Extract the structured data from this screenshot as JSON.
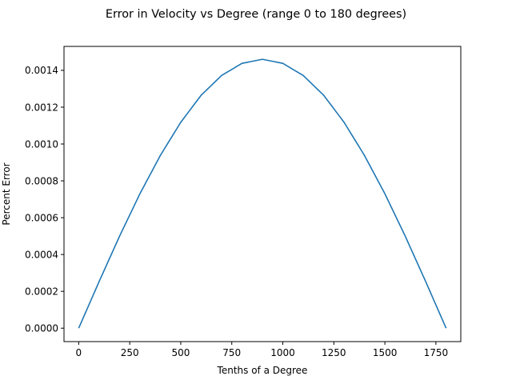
{
  "chart_data": {
    "type": "line",
    "title": "Error in Velocity vs Degree (range 0 to 180 degrees)",
    "xlabel": "Tenths of a Degree",
    "ylabel": "Percent Error",
    "xlim": [
      -72,
      1872
    ],
    "ylim": [
      -7.29e-05,
      0.00153
    ],
    "x_ticks": [
      0,
      250,
      500,
      750,
      1000,
      1250,
      1500,
      1750
    ],
    "x_tick_labels": [
      "0",
      "250",
      "500",
      "750",
      "1000",
      "1250",
      "1500",
      "1750"
    ],
    "y_ticks": [
      0,
      0.0002,
      0.0004,
      0.0006,
      0.0008,
      0.001,
      0.0012,
      0.0014
    ],
    "y_tick_labels": [
      "0.0000",
      "0.0002",
      "0.0004",
      "0.0006",
      "0.0008",
      "0.0010",
      "0.0012",
      "0.0014"
    ],
    "grid": false,
    "series": [
      {
        "color": "#1f77b4",
        "x": [
          0,
          100,
          200,
          300,
          400,
          500,
          600,
          700,
          800,
          900,
          1000,
          1100,
          1200,
          1300,
          1400,
          1500,
          1600,
          1700,
          1800
        ],
        "y": [
          0,
          0.000253,
          0.000499,
          0.00073,
          0.000938,
          0.001118,
          0.001265,
          0.001372,
          0.001438,
          0.00146,
          0.001438,
          0.001372,
          0.001265,
          0.001118,
          0.000938,
          0.00073,
          0.000499,
          0.000253,
          0
        ]
      }
    ]
  }
}
